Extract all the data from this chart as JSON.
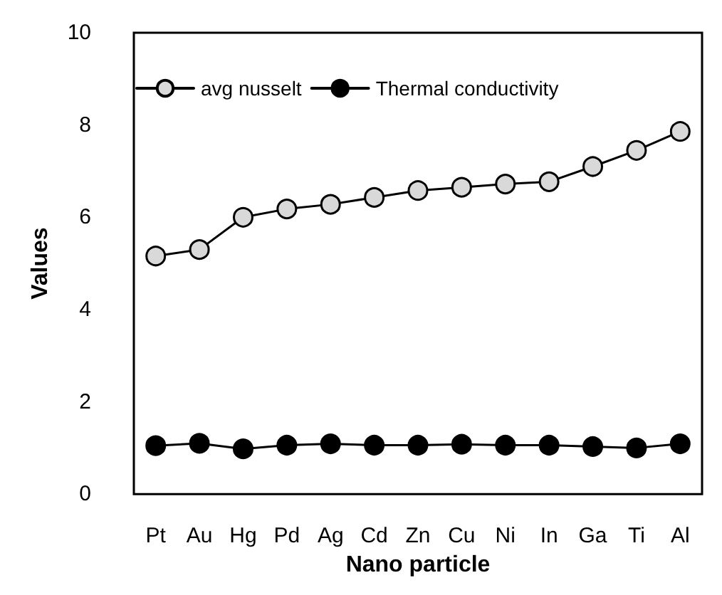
{
  "chart_data": {
    "type": "line",
    "xlabel": "Nano particle",
    "ylabel": "Values",
    "categories": [
      "Pt",
      "Au",
      "Hg",
      "Pd",
      "Ag",
      "Cd",
      "Zn",
      "Cu",
      "Ni",
      "In",
      "Ga",
      "Ti",
      "Al"
    ],
    "series": [
      {
        "name": "avg nusselt",
        "color": "#d9d9d9",
        "values": [
          5.16,
          5.3,
          6.0,
          6.18,
          6.28,
          6.43,
          6.58,
          6.65,
          6.72,
          6.77,
          7.1,
          7.45,
          7.86
        ]
      },
      {
        "name": "Thermal conductivity",
        "color": "#000000",
        "values": [
          1.05,
          1.1,
          0.98,
          1.06,
          1.09,
          1.06,
          1.06,
          1.08,
          1.06,
          1.06,
          1.03,
          1.0,
          1.09
        ]
      }
    ],
    "ylim": [
      0,
      10
    ],
    "yticks": [
      0,
      2,
      4,
      6,
      8,
      10
    ],
    "grid": false,
    "legend": "top left",
    "marker": "circle",
    "line_style": "solid"
  }
}
